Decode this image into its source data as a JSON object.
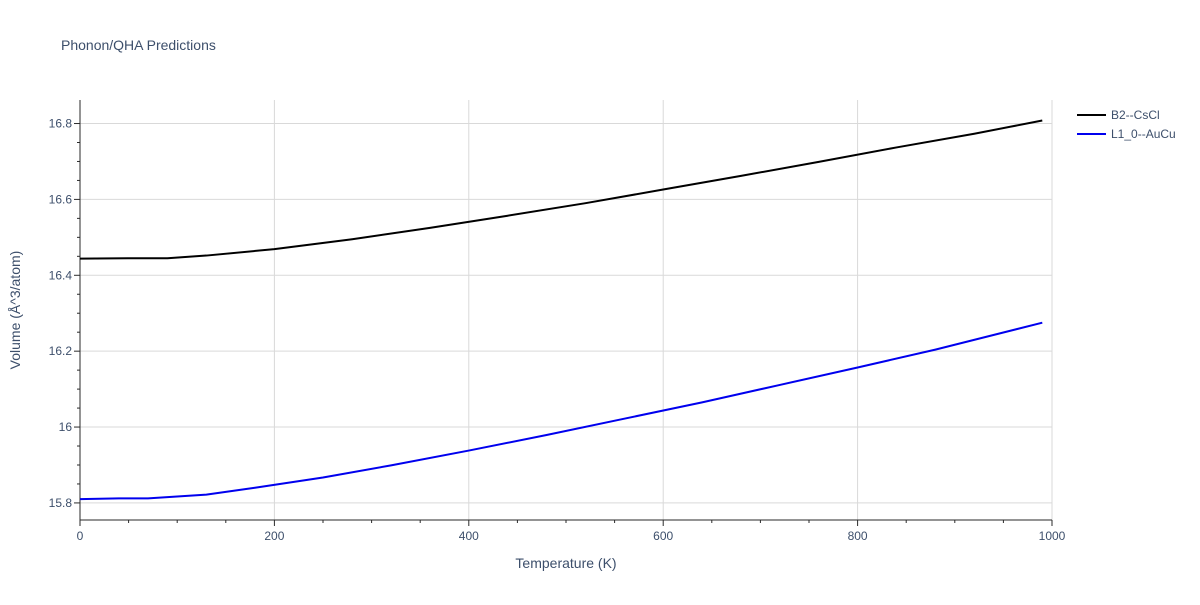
{
  "chart_data": {
    "type": "line",
    "title": "Phonon/QHA Predictions",
    "xlabel": "Temperature (K)",
    "ylabel": "Volume (Å^3/atom)",
    "xlim": [
      0,
      1000
    ],
    "ylim": [
      15.755,
      16.862
    ],
    "x_ticks": [
      0,
      200,
      400,
      600,
      800,
      1000
    ],
    "x_tick_labels": [
      "0",
      "200",
      "400",
      "600",
      "800",
      "1000"
    ],
    "y_ticks": [
      15.8,
      16.0,
      16.2,
      16.4,
      16.6,
      16.8
    ],
    "y_tick_labels": [
      "15.8",
      "16",
      "16.2",
      "16.4",
      "16.6",
      "16.8"
    ],
    "grid": true,
    "legend_position": "top-right",
    "series": [
      {
        "name": "B2--CsCl",
        "color": "#000000",
        "x": [
          0,
          50,
          90,
          130,
          200,
          280,
          360,
          440,
          520,
          600,
          680,
          760,
          840,
          920,
          990
        ],
        "y": [
          16.444,
          16.445,
          16.445,
          16.452,
          16.469,
          16.495,
          16.525,
          16.557,
          16.59,
          16.626,
          16.662,
          16.699,
          16.737,
          16.773,
          16.808
        ]
      },
      {
        "name": "L1_0--AuCu",
        "color": "#0000ee",
        "x": [
          0,
          40,
          70,
          130,
          180,
          250,
          320,
          400,
          480,
          560,
          640,
          720,
          800,
          880,
          990
        ],
        "y": [
          15.81,
          15.812,
          15.812,
          15.822,
          15.84,
          15.867,
          15.899,
          15.938,
          15.979,
          16.022,
          16.065,
          16.111,
          16.157,
          16.204,
          16.275
        ]
      }
    ]
  }
}
